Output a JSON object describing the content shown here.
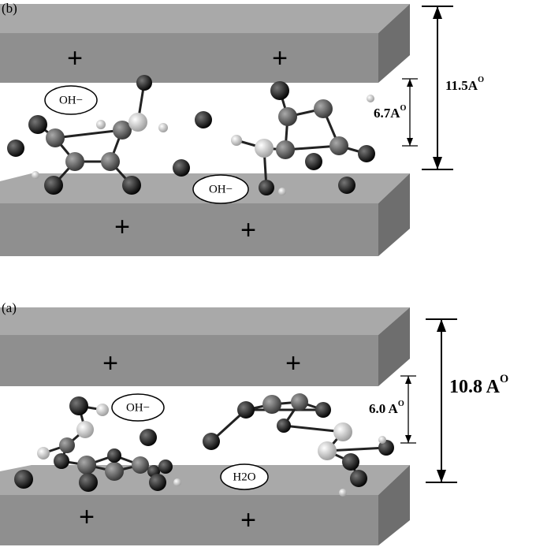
{
  "panels": [
    {
      "label": "(b)",
      "plus_signs": [
        "+",
        "+",
        "+",
        "+"
      ],
      "ions": [
        "OH−",
        "OH−"
      ],
      "inner_distance": {
        "text": "6.7A",
        "sup": "O"
      },
      "outer_distance": {
        "text": "11.5A",
        "sup": "O"
      }
    },
    {
      "label": "(a)",
      "plus_signs": [
        "+",
        "+",
        "+",
        "+"
      ],
      "ions": [
        "OH−",
        "H2O"
      ],
      "inner_distance": {
        "text": "6.0 A",
        "sup": "O"
      },
      "outer_distance": {
        "text": "10.8 A",
        "sup": "O"
      }
    }
  ]
}
